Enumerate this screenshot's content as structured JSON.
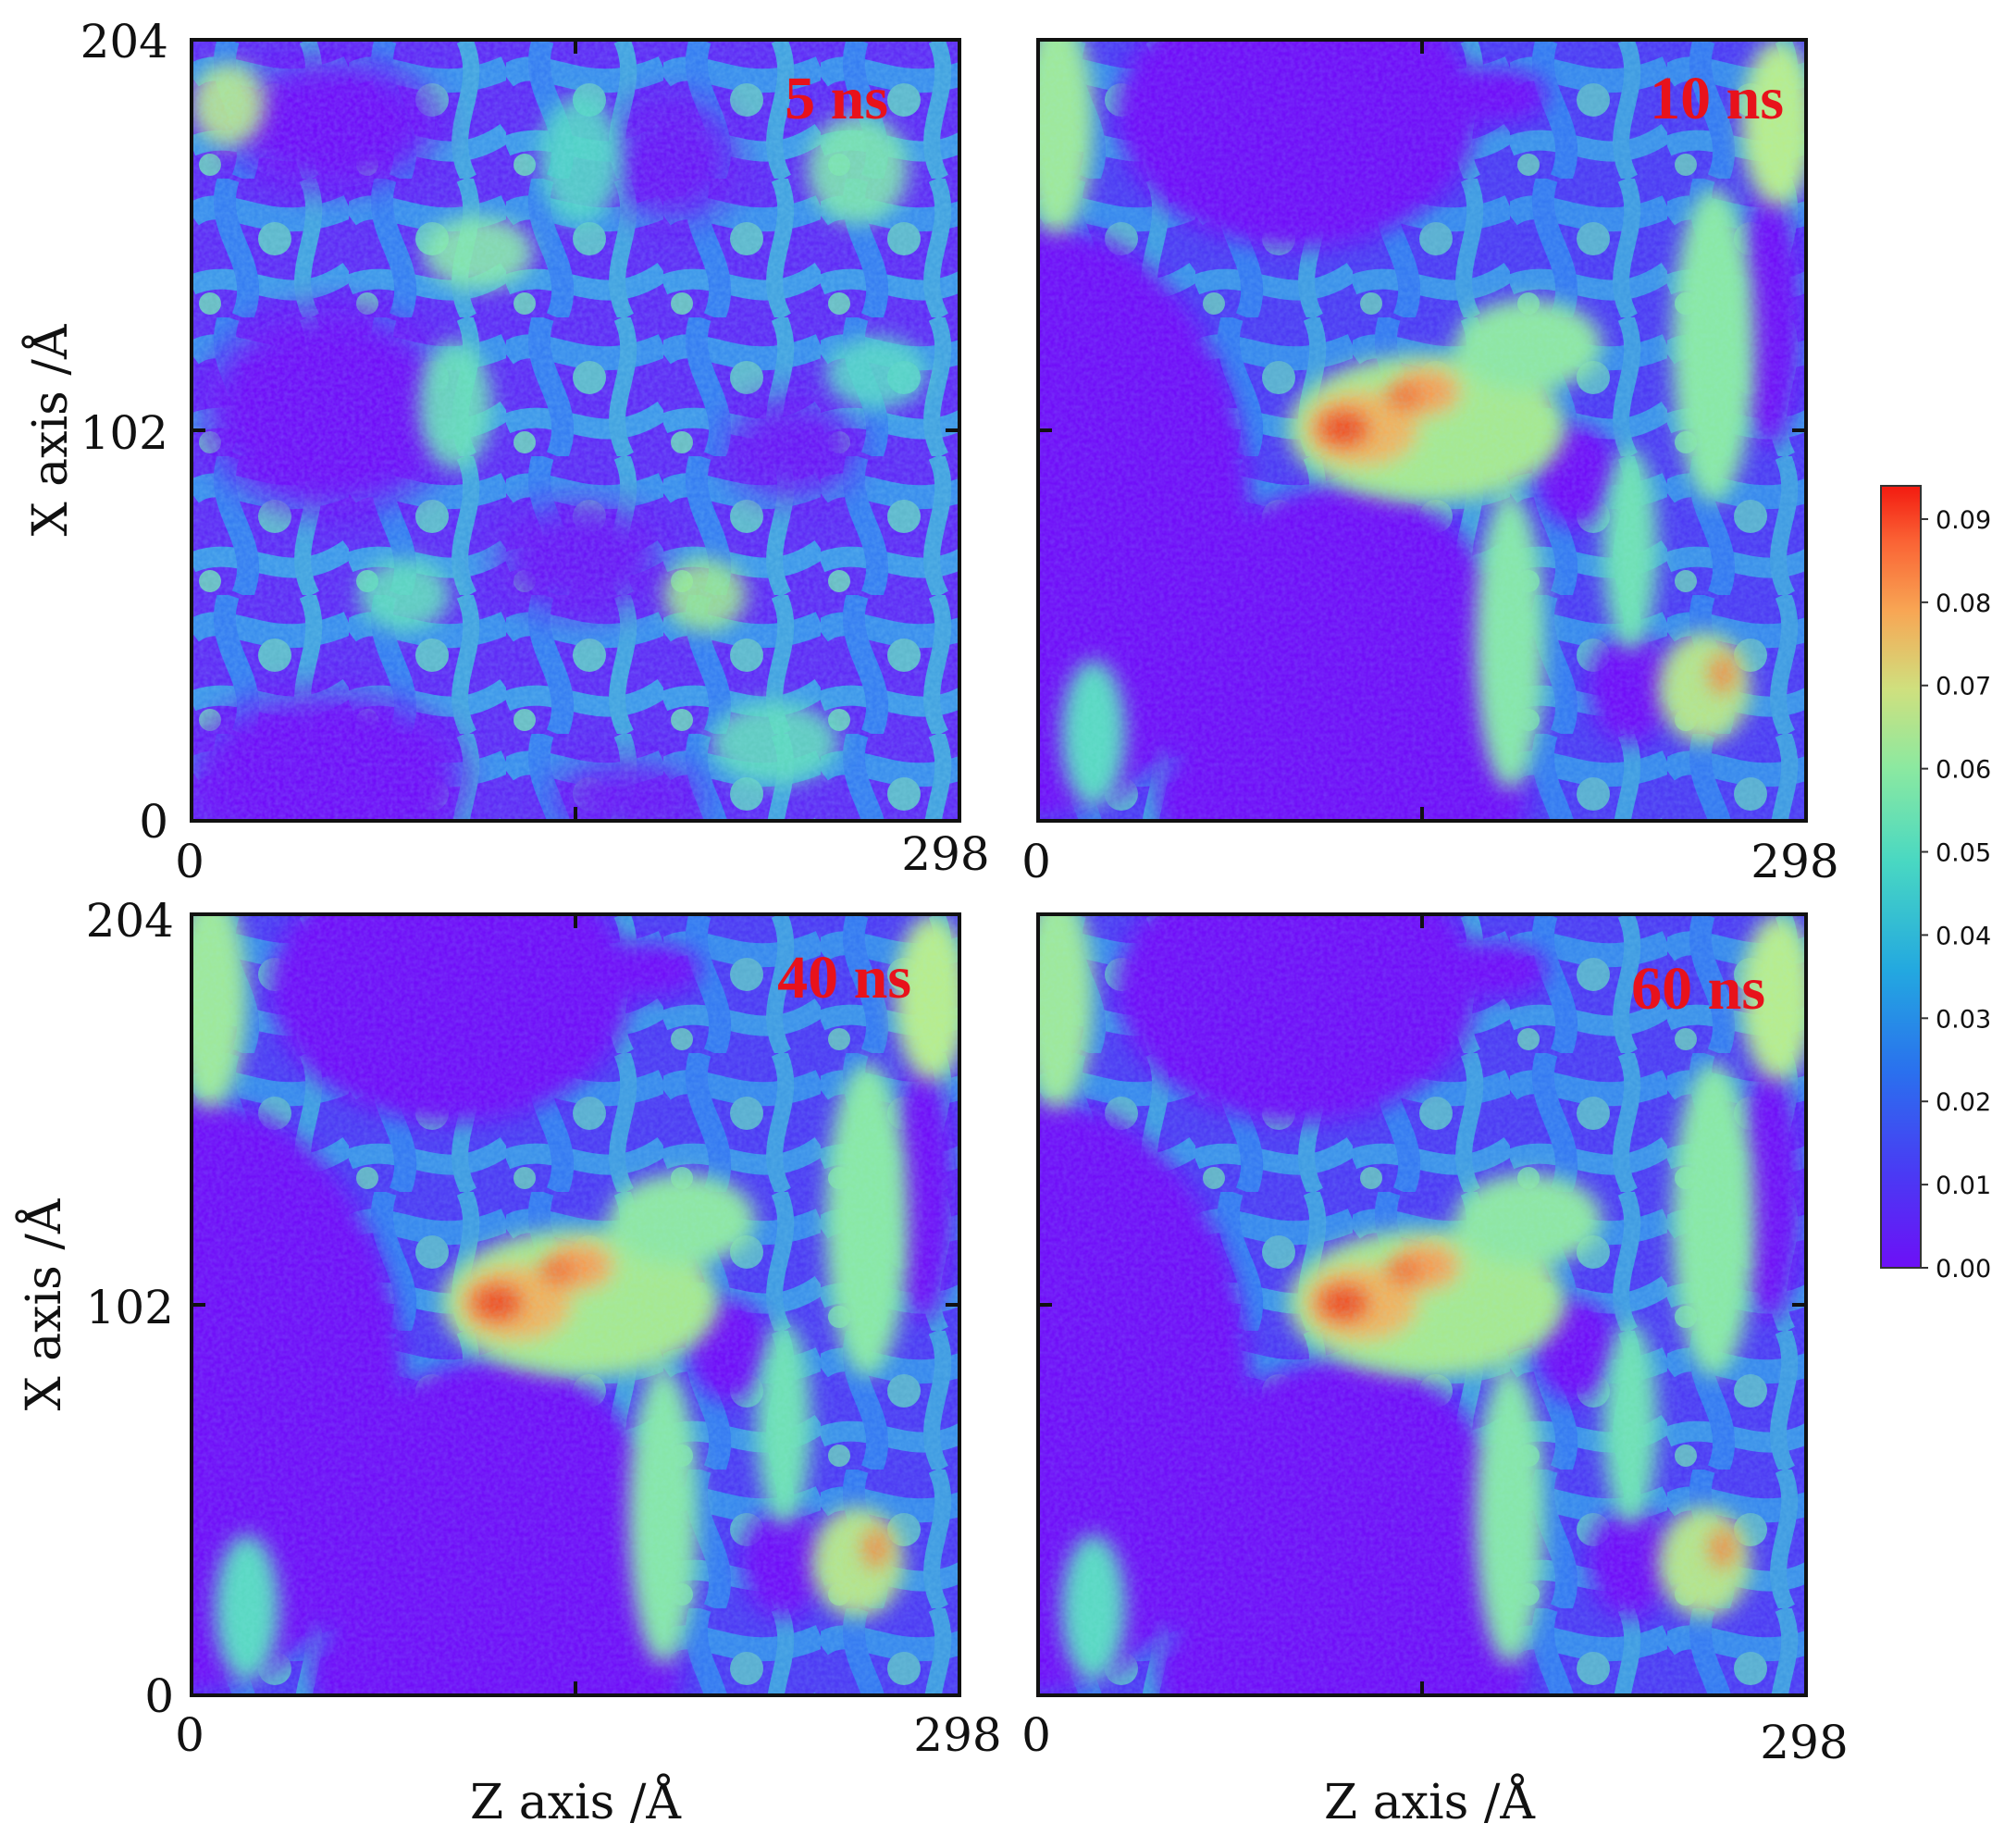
{
  "chart_data": {
    "type": "heatmap",
    "panels": [
      {
        "label": "5 ns",
        "time_ns": 5,
        "xlim": [
          0,
          298
        ],
        "ylim": [
          0,
          204
        ],
        "xticks": [
          "0",
          "298"
        ],
        "yticks": [
          "0",
          "102",
          "204"
        ],
        "xlabel": "",
        "ylabel": "X axis /Å"
      },
      {
        "label": "10 ns",
        "time_ns": 10,
        "xlim": [
          0,
          298
        ],
        "ylim": [
          0,
          204
        ],
        "xticks": [
          "0",
          "298"
        ],
        "yticks": [],
        "xlabel": "",
        "ylabel": ""
      },
      {
        "label": "40 ns",
        "time_ns": 40,
        "xlim": [
          0,
          298
        ],
        "ylim": [
          0,
          204
        ],
        "xticks": [
          "0",
          "298"
        ],
        "yticks": [
          "0",
          "102",
          "204"
        ],
        "xlabel": "Z axis /Å",
        "ylabel": "X axis /Å"
      },
      {
        "label": "60 ns",
        "time_ns": 60,
        "xlim": [
          0,
          298
        ],
        "ylim": [
          0,
          204
        ],
        "xticks": [
          "0",
          "298"
        ],
        "yticks": [],
        "xlabel": "Z axis /Å",
        "ylabel": ""
      }
    ],
    "colorbar": {
      "min": 0.0,
      "max": 0.094,
      "ticks": [
        "0.00",
        "0.01",
        "0.02",
        "0.03",
        "0.04",
        "0.05",
        "0.06",
        "0.07",
        "0.08",
        "0.09"
      ],
      "colormap": "rainbow"
    },
    "label_color": "#e8121b",
    "void_color": "#7010f8"
  }
}
